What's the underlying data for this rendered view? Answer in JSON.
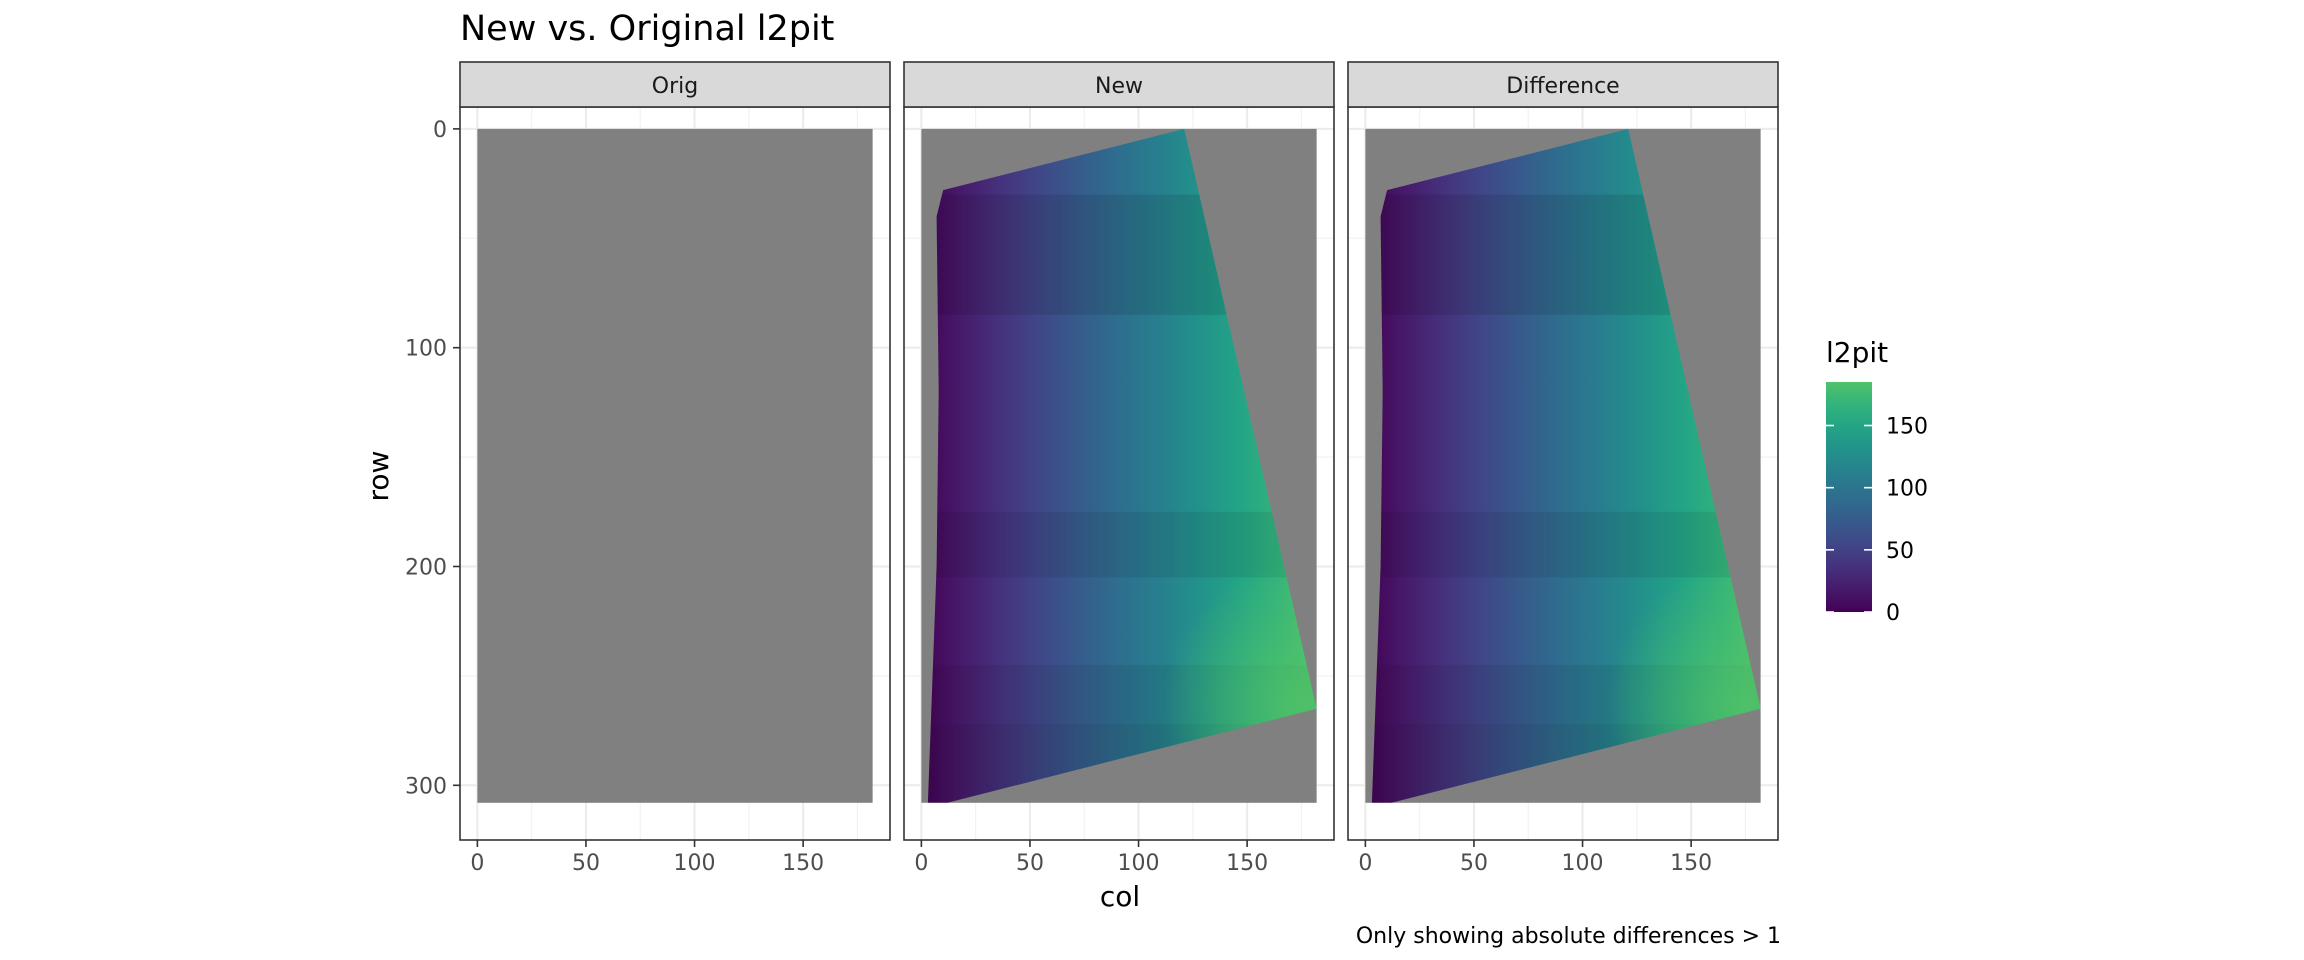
{
  "chart_data": {
    "type": "heatmap",
    "title": "New vs. Original l2pit",
    "caption": "Only showing absolute differences > 1",
    "xlabel": "col",
    "ylabel": "row",
    "xlim": [
      -8,
      190
    ],
    "ylim": [
      -10,
      325
    ],
    "y_reversed": true,
    "x_ticks": [
      0,
      50,
      100,
      150
    ],
    "y_ticks": [
      0,
      100,
      200,
      300
    ],
    "grid": true,
    "legend": {
      "title": "l2pit",
      "position": "right",
      "breaks": [
        0,
        50,
        100,
        150
      ],
      "range": [
        0,
        185
      ]
    },
    "na_color": "#808080",
    "raster_extent": {
      "cols": [
        0,
        182
      ],
      "rows": [
        0,
        308
      ]
    },
    "facets": [
      {
        "label": "Orig",
        "has_values": false
      },
      {
        "label": "New",
        "has_values": true
      },
      {
        "label": "Difference",
        "has_values": true
      }
    ],
    "valid_region_polygon": [
      [
        121,
        0
      ],
      [
        182,
        265
      ],
      [
        12,
        308
      ],
      [
        3,
        308
      ],
      [
        7,
        200
      ],
      [
        8,
        120
      ],
      [
        7,
        40
      ],
      [
        10,
        28
      ]
    ],
    "value_notes": "l2pit increases from ~0 at the left edge to ~185 at the lower-right corner, with horizontal banding"
  }
}
